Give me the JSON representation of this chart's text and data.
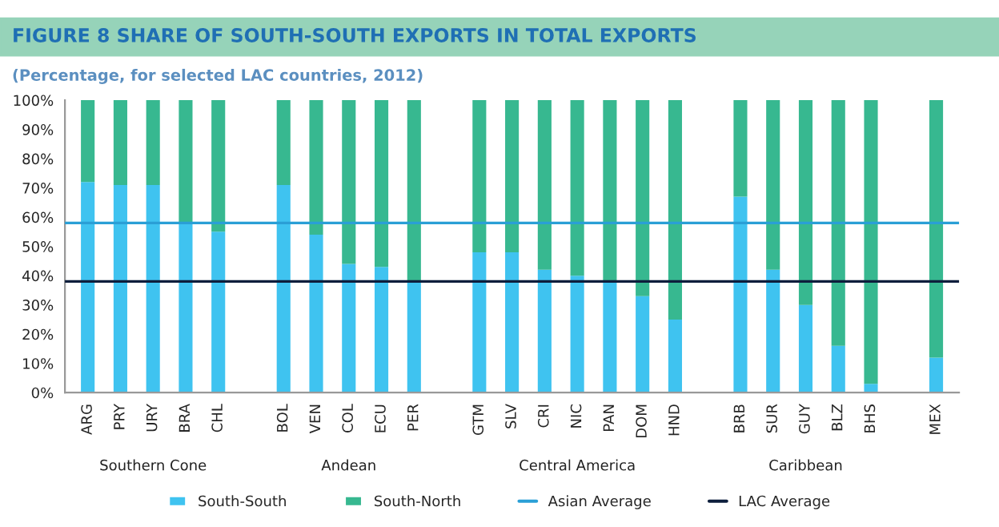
{
  "chart_data": {
    "type": "bar",
    "title": "FIGURE 8 SHARE OF SOUTH-SOUTH EXPORTS IN TOTAL EXPORTS",
    "subtitle": "(Percentage, for selected LAC countries, 2012)",
    "categories": [
      "ARG",
      "PRY",
      "URY",
      "BRA",
      "CHL",
      null,
      "BOL",
      "VEN",
      "COL",
      "ECU",
      "PER",
      null,
      "GTM",
      "SLV",
      "CRI",
      "NIC",
      "PAN",
      "DOM",
      "HND",
      null,
      "BRB",
      "SUR",
      "GUY",
      "BLZ",
      "BHS",
      null,
      "MEX"
    ],
    "stacked": true,
    "series": [
      {
        "name": "South-South",
        "color": "#3fc3f0",
        "values": [
          72,
          71,
          71,
          58,
          55,
          null,
          71,
          54,
          44,
          43,
          38,
          null,
          48,
          48,
          42,
          40,
          38,
          33,
          25,
          null,
          67,
          42,
          30,
          16,
          3,
          null,
          12
        ]
      },
      {
        "name": "South-North",
        "color": "#37b890",
        "values": [
          28,
          29,
          29,
          42,
          45,
          null,
          29,
          46,
          56,
          57,
          62,
          null,
          52,
          52,
          58,
          60,
          62,
          67,
          75,
          null,
          33,
          58,
          70,
          84,
          97,
          null,
          88
        ]
      }
    ],
    "ref_lines": [
      {
        "axis": "y",
        "value": 58,
        "label": "Asian Average",
        "color": "#2a9fd6"
      },
      {
        "axis": "y",
        "value": 38,
        "label": "LAC Average",
        "color": "#0d1e3c"
      }
    ],
    "annotations": [
      "Southern Cone",
      "Andean",
      "Central America",
      "Caribbean"
    ],
    "ylim": [
      0,
      100
    ],
    "yticks": [
      {
        "value": 0,
        "label": "0%"
      },
      {
        "value": 10,
        "label": "10%"
      },
      {
        "value": 20,
        "label": "20%"
      },
      {
        "value": 30,
        "label": "30%"
      },
      {
        "value": 40,
        "label": "40%"
      },
      {
        "value": 50,
        "label": "50%"
      },
      {
        "value": 60,
        "label": "60%"
      },
      {
        "value": 70,
        "label": "70%"
      },
      {
        "value": 80,
        "label": "80%"
      },
      {
        "value": 90,
        "label": "90%"
      },
      {
        "value": 100,
        "label": "100%"
      }
    ],
    "legend": "bottom"
  }
}
